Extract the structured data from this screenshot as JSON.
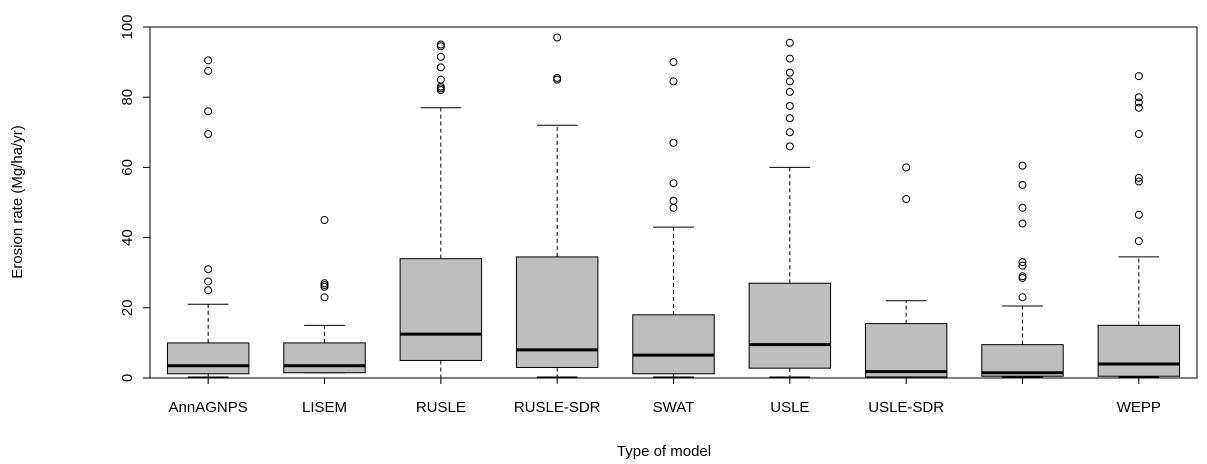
{
  "chart_data": {
    "type": "box",
    "x_label": "Type of model",
    "y_label": "Erosion rate (Mg/ha/yr)",
    "categories": [
      "AnnAGNPS",
      "LISEM",
      "RUSLE",
      "RUSLE-SDR",
      "SWAT",
      "USLE",
      "USLE-SDR",
      null,
      "WEPP"
    ],
    "color": "#bebebe",
    "ylim": [
      0,
      100
    ],
    "yticks": [
      0,
      20,
      40,
      60,
      80,
      100
    ],
    "boxes": [
      {
        "min": 0.3,
        "q1": 1.2,
        "median": 3.5,
        "q3": 10,
        "max": 21,
        "outliers": [
          25,
          27.5,
          31,
          69.5,
          76,
          87.5,
          90.5
        ]
      },
      {
        "min": 1.5,
        "q1": 1.5,
        "median": 3.5,
        "q3": 10,
        "max": 15,
        "outliers": [
          23,
          26,
          26.5,
          27,
          45
        ]
      },
      {
        "min": 0,
        "q1": 5,
        "median": 12.5,
        "q3": 34,
        "max": 77,
        "outliers": [
          82,
          82.5,
          83,
          85,
          88.5,
          91.5,
          94.5,
          95
        ]
      },
      {
        "min": 0.3,
        "q1": 3,
        "median": 8,
        "q3": 34.5,
        "max": 72,
        "outliers": [
          85,
          85.5,
          97
        ]
      },
      {
        "min": 0.3,
        "q1": 1.2,
        "median": 6.5,
        "q3": 18,
        "max": 43,
        "outliers": [
          48.5,
          50.5,
          55.5,
          67,
          84.5,
          90
        ]
      },
      {
        "min": 0.3,
        "q1": 2.8,
        "median": 9.5,
        "q3": 27,
        "max": 60,
        "outliers": [
          66,
          70,
          74,
          77.5,
          81.5,
          84.5,
          87,
          91,
          95.5
        ]
      },
      {
        "min": 0,
        "q1": 0.3,
        "median": 1.8,
        "q3": 15.5,
        "max": 22,
        "outliers": [
          51,
          60
        ]
      },
      {
        "min": 0.3,
        "q1": 0.5,
        "median": 1.5,
        "q3": 9.5,
        "max": 20.5,
        "outliers": [
          23,
          28.5,
          29,
          32,
          33,
          44,
          48.5,
          55,
          60.5
        ]
      },
      {
        "min": 0.3,
        "q1": 0.5,
        "median": 4,
        "q3": 15,
        "max": 34.5,
        "outliers": [
          39,
          46.5,
          56,
          57,
          69.5,
          77,
          78.5,
          80,
          86
        ]
      }
    ]
  }
}
